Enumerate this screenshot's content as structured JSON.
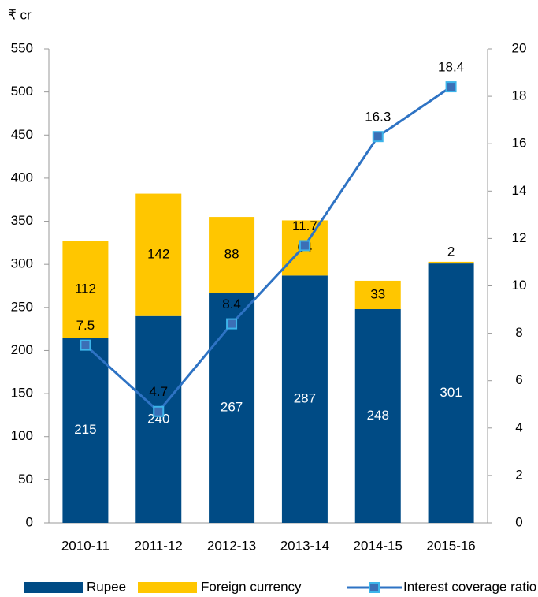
{
  "chart_data": {
    "type": "bar",
    "stacked": true,
    "y_label": "₹ cr",
    "categories": [
      "2010-11",
      "2011-12",
      "2012-13",
      "2013-14",
      "2014-15",
      "2015-16"
    ],
    "series": [
      {
        "name": "Rupee",
        "color": "#004b85",
        "values": [
          215,
          240,
          267,
          287,
          248,
          301
        ]
      },
      {
        "name": "Foreign currency",
        "color": "#ffc600",
        "values": [
          112,
          142,
          88,
          64,
          33,
          2
        ]
      },
      {
        "name": "Interest coverage ratio",
        "type": "line",
        "axis": "y2",
        "color": "#2e73c4",
        "values": [
          7.5,
          4.7,
          8.4,
          11.7,
          16.3,
          18.4
        ]
      }
    ],
    "ylim": [
      0,
      550
    ],
    "yticks": [
      0,
      50,
      100,
      150,
      200,
      250,
      300,
      350,
      400,
      450,
      500,
      550
    ],
    "y2lim": [
      0,
      20
    ],
    "y2ticks": [
      0,
      2,
      4,
      6,
      8,
      10,
      12,
      14,
      16,
      18,
      20
    ],
    "legend": "bottom"
  }
}
